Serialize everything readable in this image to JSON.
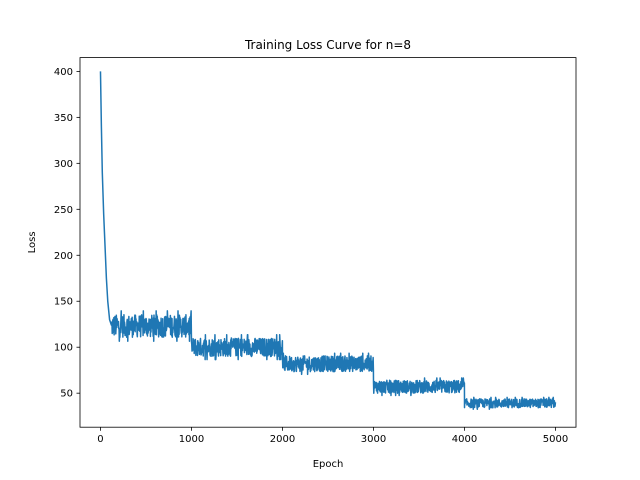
{
  "chart_data": {
    "type": "line",
    "title": "Training Loss Curve for n=8",
    "xlabel": "Epoch",
    "ylabel": "Loss",
    "xlim": [
      -225,
      5225
    ],
    "ylim": [
      13,
      415
    ],
    "xticks": [
      0,
      1000,
      2000,
      3000,
      4000,
      5000
    ],
    "yticks": [
      50,
      100,
      150,
      200,
      250,
      300,
      350,
      400
    ],
    "grid": false,
    "series": [
      {
        "color": "#1f77b4",
        "epochs": 5000,
        "initial_phase": [
          {
            "x": 0,
            "y": 400
          },
          {
            "x": 10,
            "y": 340
          },
          {
            "x": 20,
            "y": 290
          },
          {
            "x": 35,
            "y": 245
          },
          {
            "x": 50,
            "y": 210
          },
          {
            "x": 65,
            "y": 175
          },
          {
            "x": 80,
            "y": 150
          },
          {
            "x": 100,
            "y": 130
          },
          {
            "x": 120,
            "y": 124
          }
        ],
        "segments": [
          {
            "x_start": 120,
            "x_end": 1000,
            "mean": 123,
            "band_low": 105,
            "band_high": 138
          },
          {
            "x_start": 1000,
            "x_end": 2000,
            "mean": 100,
            "band_low": 87,
            "band_high": 114
          },
          {
            "x_start": 2000,
            "x_end": 3000,
            "mean": 82,
            "band_low": 72,
            "band_high": 95
          },
          {
            "x_start": 3000,
            "x_end": 4000,
            "mean": 57,
            "band_low": 49,
            "band_high": 68
          },
          {
            "x_start": 4000,
            "x_end": 5000,
            "mean": 39,
            "band_low": 33,
            "band_high": 46
          }
        ]
      }
    ]
  }
}
